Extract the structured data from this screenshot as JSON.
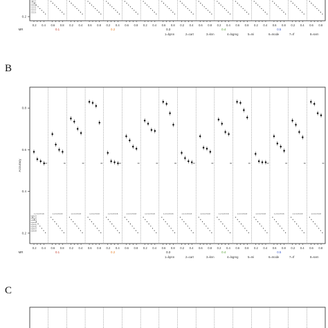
{
  "panel_labels": [
    "B",
    "C"
  ],
  "mr_label": "MR",
  "mr_levels": [
    "0.1",
    "0.2",
    "0.3",
    "0.4",
    "0.5"
  ],
  "mr_colors": [
    "#c0392b",
    "#e67e22",
    "#222222",
    "#4a9a2a",
    "#3355cc"
  ],
  "method_key": [
    "1=bpnn",
    "2=cart",
    "3=knn",
    "4=logreg",
    "5=mi",
    "6=mode",
    "7=rf",
    "8=svm"
  ],
  "strip_text": "1 2 3 4 5 6 8",
  "side_labels": [
    "subset1",
    "subset2",
    "subset3",
    "subset4",
    "subset5",
    "subset6",
    "subset7",
    "subset8"
  ],
  "chart_data": [
    {
      "panel": "A (partial, top)",
      "type": "scatter",
      "ylabel": "",
      "yticks": [
        "0.2"
      ],
      "ylim": [
        0.15,
        0.9
      ],
      "groups": 16,
      "xticks_per_group": [
        "0.2",
        "0.4",
        "0.6",
        "0.8"
      ]
    },
    {
      "panel": "B",
      "type": "scatter",
      "ylabel": "Accuracy",
      "yticks": [
        "0.2",
        "0.4",
        "0.6",
        "0.8"
      ],
      "ylim": [
        0.15,
        0.9
      ],
      "xticks_per_group": [
        "0.2",
        "0.4",
        "0.6",
        "0.8"
      ],
      "baseline": 0.535,
      "groups": [
        {
          "values": [
            0.59,
            0.555,
            0.545,
            0.535
          ]
        },
        {
          "values": [
            0.675,
            0.625,
            0.6,
            0.59
          ]
        },
        {
          "values": [
            0.75,
            0.735,
            0.7,
            0.68
          ]
        },
        {
          "values": [
            0.83,
            0.825,
            0.81,
            0.73
          ]
        },
        {
          "values": [
            0.585,
            0.545,
            0.54,
            0.535
          ]
        },
        {
          "values": [
            0.665,
            0.645,
            0.615,
            0.605
          ]
        },
        {
          "values": [
            0.74,
            0.725,
            0.695,
            0.69
          ]
        },
        {
          "values": [
            0.83,
            0.82,
            0.775,
            0.72
          ]
        },
        {
          "values": [
            0.585,
            0.56,
            0.545,
            0.54
          ]
        },
        {
          "values": [
            0.665,
            0.61,
            0.605,
            0.59
          ]
        },
        {
          "values": [
            0.745,
            0.725,
            0.685,
            0.675
          ]
        },
        {
          "values": [
            0.83,
            0.825,
            0.79,
            0.755
          ]
        },
        {
          "values": [
            0.58,
            0.545,
            0.54,
            0.54
          ]
        },
        {
          "values": [
            0.665,
            0.63,
            0.615,
            0.595
          ]
        },
        {
          "values": [
            0.74,
            0.72,
            0.685,
            0.66
          ]
        },
        {
          "values": [
            0.83,
            0.82,
            0.775,
            0.765
          ]
        }
      ]
    },
    {
      "panel": "C (partial, bottom)",
      "type": "scatter",
      "groups": 16
    }
  ]
}
